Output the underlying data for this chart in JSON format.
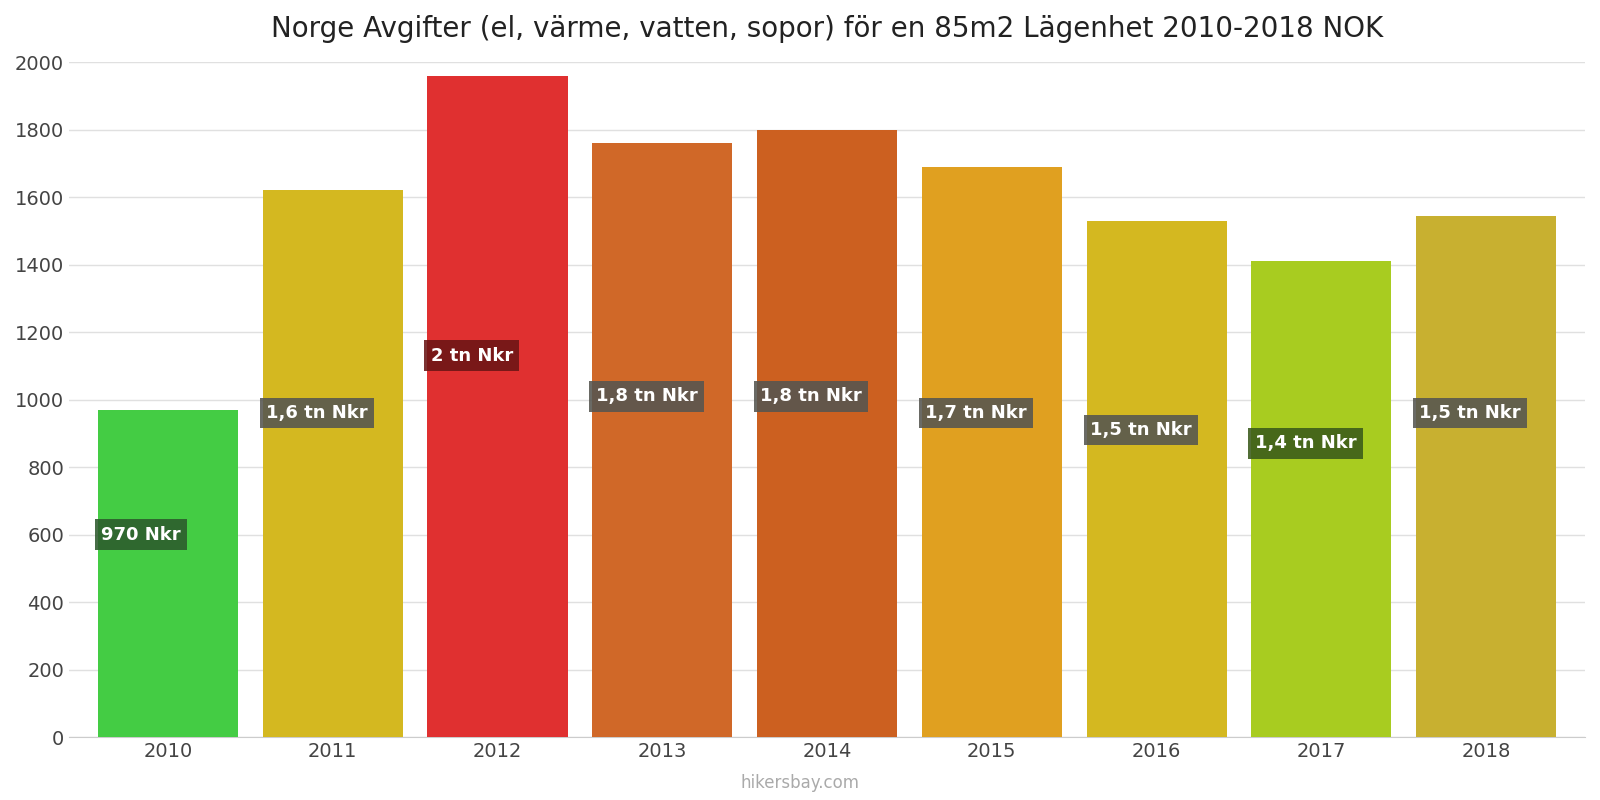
{
  "title": "Norge Avgifter (el, värme, vatten, sopor) för en 85m2 Lägenhet 2010-2018 NOK",
  "years": [
    2010,
    2011,
    2012,
    2013,
    2014,
    2015,
    2016,
    2017,
    2018
  ],
  "values": [
    970,
    1620,
    1960,
    1760,
    1800,
    1690,
    1530,
    1410,
    1545
  ],
  "colors": [
    "#44cc44",
    "#d4b820",
    "#e03030",
    "#d06828",
    "#cc6020",
    "#e0a020",
    "#d4b820",
    "#a8cc20",
    "#c8b030"
  ],
  "labels": [
    "970 Nkr",
    "1,6 tn Nkr",
    "2 tn Nkr",
    "1,8 tn Nkr",
    "1,8 tn Nkr",
    "1,7 tn Nkr",
    "1,5 tn Nkr",
    "1,4 tn Nkr",
    "1,5 tn Nkr"
  ],
  "label_y_positions": [
    600,
    960,
    1130,
    1010,
    1010,
    960,
    910,
    870,
    960
  ],
  "ylim": [
    0,
    2000
  ],
  "yticks": [
    0,
    200,
    400,
    600,
    800,
    1000,
    1200,
    1400,
    1600,
    1800,
    2000
  ],
  "background_color": "#ffffff",
  "title_fontsize": 20,
  "annotation_bg_2010": "#2d5a2d",
  "annotation_bg_2012": "#6b1515",
  "annotation_bg_default": "#555550",
  "annotation_bg_2017": "#3a5a1a",
  "bar_width": 0.85,
  "watermark": "hikersbay.com"
}
